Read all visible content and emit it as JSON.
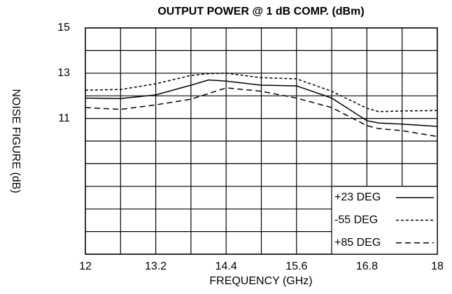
{
  "chart_data": {
    "type": "line",
    "title": "OUTPUT POWER @ 1 dB COMP. (dBm)",
    "xlabel": "FREQUENCY (GHz)",
    "ylabel": "NOISE FIGURE (dB)",
    "x": [
      12,
      12.6,
      13.2,
      13.8,
      14.1,
      14.4,
      15.0,
      15.6,
      16.2,
      16.8,
      17.0,
      17.4,
      18
    ],
    "series": [
      {
        "name": "+23 DEG",
        "color": "#000000",
        "dash": "solid",
        "values": [
          11.9,
          11.88,
          12.04,
          12.47,
          12.7,
          12.65,
          12.47,
          12.44,
          11.9,
          10.9,
          10.8,
          10.75,
          10.65
        ]
      },
      {
        "name": "-55 DEG",
        "color": "#000000",
        "dash": "short",
        "values": [
          12.25,
          12.28,
          12.53,
          12.9,
          12.98,
          13.0,
          12.8,
          12.75,
          12.2,
          11.45,
          11.3,
          11.33,
          11.35
        ]
      },
      {
        "name": "+85 DEG",
        "color": "#000000",
        "dash": "long",
        "values": [
          11.48,
          11.4,
          11.6,
          11.85,
          12.1,
          12.35,
          12.2,
          11.9,
          11.48,
          10.68,
          10.55,
          10.46,
          10.2
        ]
      }
    ],
    "xlim": [
      12,
      18
    ],
    "xticks": [
      12,
      13.2,
      14.4,
      15.6,
      16.8,
      18
    ],
    "xgrid": [
      12,
      12.6,
      13.2,
      13.8,
      14.4,
      15.0,
      15.6,
      16.2,
      16.8,
      17.4,
      18
    ],
    "ylim": [
      5,
      15
    ],
    "yticks": [
      15,
      13,
      11
    ],
    "ygrid": [
      5,
      6,
      7,
      8,
      9,
      10,
      11,
      12,
      13,
      14,
      15
    ],
    "grid": true,
    "legend": "lower right"
  }
}
